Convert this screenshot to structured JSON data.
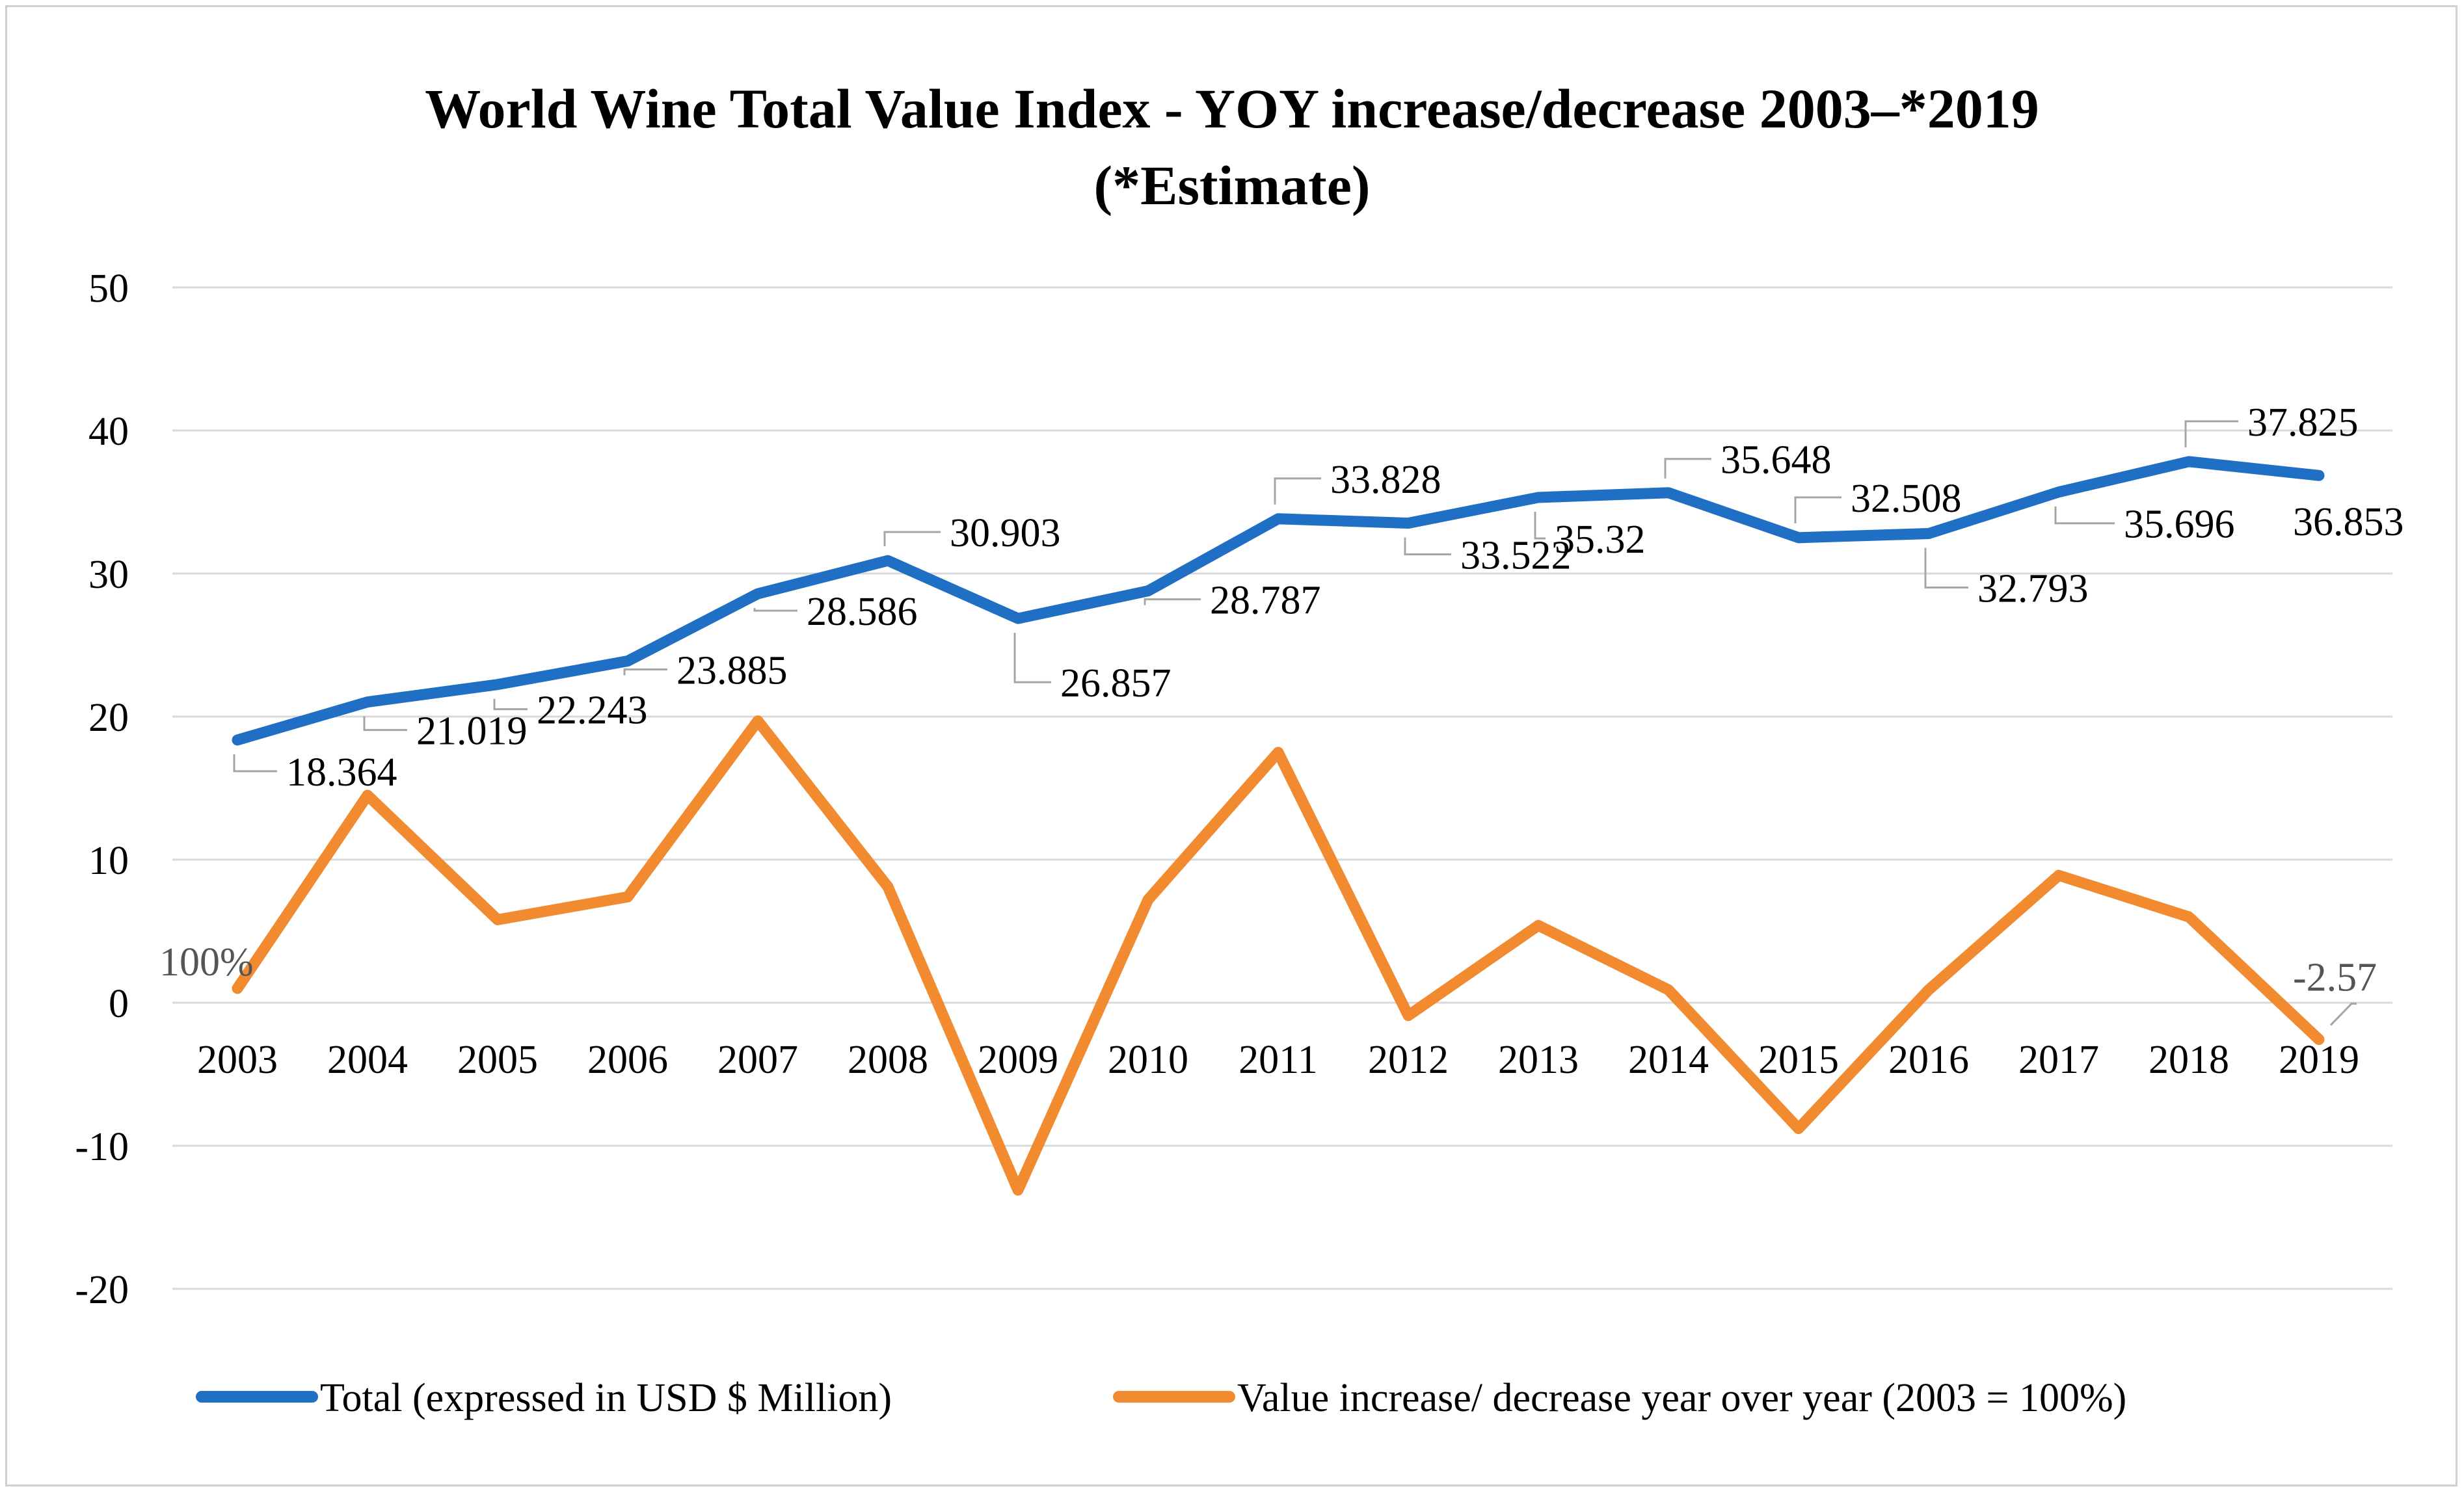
{
  "chart_data": {
    "type": "line",
    "title": "World Wine Total Value Index  - YOY increase/decrease 2003–*2019",
    "subtitle": "(*Estimate)",
    "categories": [
      "2003",
      "2004",
      "2005",
      "2006",
      "2007",
      "2008",
      "2009",
      "2010",
      "2011",
      "2012",
      "2013",
      "2014",
      "2015",
      "2016",
      "2017",
      "2018",
      "2019"
    ],
    "ylim": [
      -20,
      50
    ],
    "yticks": [
      "50",
      "40",
      "30",
      "20",
      "10",
      "0",
      "-10",
      "-20"
    ],
    "ytick_values": [
      50,
      40,
      30,
      20,
      10,
      0,
      -10,
      -20
    ],
    "grid": true,
    "legend_position": "bottom",
    "series": [
      {
        "name": "Total (expressed in USD $ Million)",
        "color": "#1f6fc5",
        "values": [
          18.364,
          21.019,
          22.243,
          23.885,
          28.586,
          30.903,
          26.857,
          28.787,
          33.828,
          33.522,
          35.32,
          35.648,
          32.508,
          32.793,
          35.696,
          37.825,
          36.853
        ],
        "labels": [
          "18.364",
          "21.019",
          "22.243",
          "23.885",
          "28.586",
          "30.903",
          "26.857",
          "28.787",
          "33.828",
          "33.522",
          "35.32",
          "35.648",
          "32.508",
          "32.793",
          "35.696",
          "37.825",
          "36.853"
        ]
      },
      {
        "name": "Value increase/ decrease year over year (2003 = 100%)",
        "color": "#f28a30",
        "values": [
          1,
          14.5,
          5.8,
          7.4,
          19.7,
          8.1,
          -13.1,
          7.2,
          17.5,
          -0.9,
          5.4,
          0.9,
          -8.8,
          0.9,
          8.9,
          6,
          -2.57
        ],
        "labels": [
          "100%",
          "",
          "",
          "",
          "",
          "",
          "",
          "",
          "",
          "",
          "",
          "",
          "",
          "",
          "",
          "",
          "-2.57"
        ]
      }
    ]
  }
}
